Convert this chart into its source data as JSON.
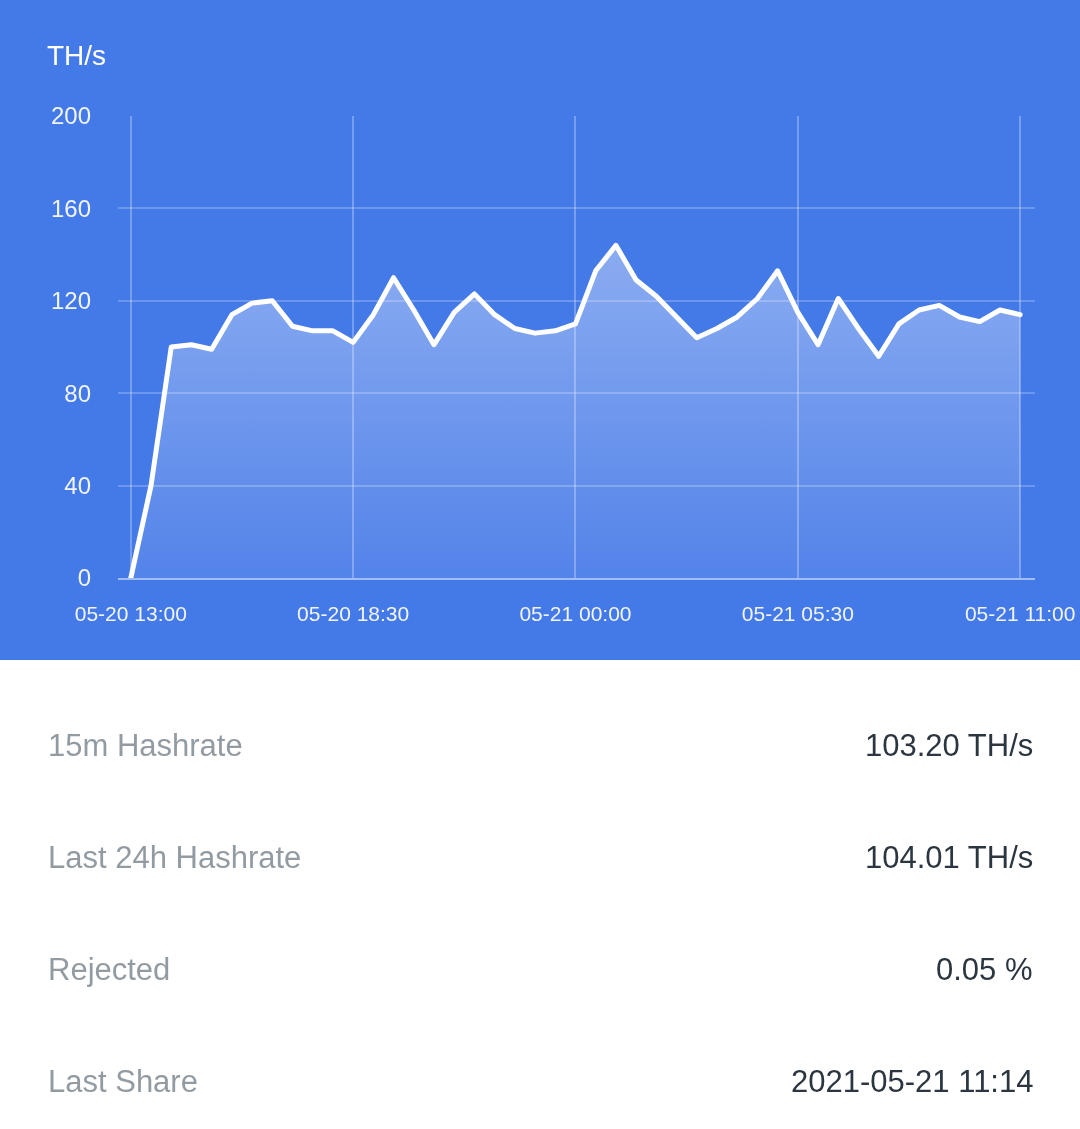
{
  "chart_data": {
    "type": "area",
    "ylabel": "TH/s",
    "x": [
      "--05-20T13:00",
      "--05-20T13:30",
      "--05-20T14:00",
      "--05-20T14:30",
      "--05-20T15:00",
      "--05-20T15:30",
      "--05-20T16:00",
      "--05-20T16:30",
      "--05-20T17:00",
      "--05-20T17:30",
      "--05-20T18:00",
      "--05-20T18:30",
      "--05-20T19:00",
      "--05-20T19:30",
      "--05-20T20:00",
      "--05-20T20:30",
      "--05-20T21:00",
      "--05-20T21:30",
      "--05-20T22:00",
      "--05-20T22:30",
      "--05-20T23:00",
      "--05-20T23:30",
      "--05-21T00:00",
      "--05-21T00:30",
      "--05-21T01:00",
      "--05-21T01:30",
      "--05-21T02:00",
      "--05-21T02:30",
      "--05-21T03:00",
      "--05-21T03:30",
      "--05-21T04:00",
      "--05-21T04:30",
      "--05-21T05:00",
      "--05-21T05:30",
      "--05-21T06:00",
      "--05-21T06:30",
      "--05-21T07:00",
      "--05-21T07:30",
      "--05-21T08:00",
      "--05-21T08:30",
      "--05-21T09:00",
      "--05-21T09:30",
      "--05-21T10:00",
      "--05-21T10:30",
      "--05-21T11:00"
    ],
    "series": [
      {
        "color": "#ffffff",
        "values": [
          0,
          40,
          100,
          101,
          99,
          114,
          119,
          120,
          109,
          107,
          107,
          102,
          114,
          130,
          116,
          101,
          115,
          123,
          114,
          108,
          106,
          107,
          110,
          133,
          144,
          129,
          122,
          113,
          104,
          108,
          113,
          121,
          133,
          115,
          101,
          121,
          108,
          96,
          110,
          116,
          118,
          113,
          111,
          116,
          114
        ]
      }
    ],
    "xlim": [
      "--05-20T12:41",
      "--05-21T11:22"
    ],
    "xticks": [
      {
        "value": "--05-20T13:00",
        "label": "05-20 13:00"
      },
      {
        "value": "--05-20T18:30",
        "label": "05-20 18:30"
      },
      {
        "value": "--05-21T00:00",
        "label": "05-21 00:00"
      },
      {
        "value": "--05-21T05:30",
        "label": "05-21 05:30"
      },
      {
        "value": "--05-21T11:00",
        "label": "05-21 11:00"
      }
    ],
    "ylim": [
      0,
      200
    ],
    "yticks": [
      0,
      40,
      80,
      120,
      160,
      200
    ],
    "grid": true,
    "line_style": "solid",
    "annotations": [
      "15m Hashrate",
      "103.20 TH/s",
      "Last 24h Hashrate",
      "104.01 TH/s",
      "Rejected",
      "0.05 %",
      "Last Share",
      "2021-05-21 11:14"
    ]
  }
}
